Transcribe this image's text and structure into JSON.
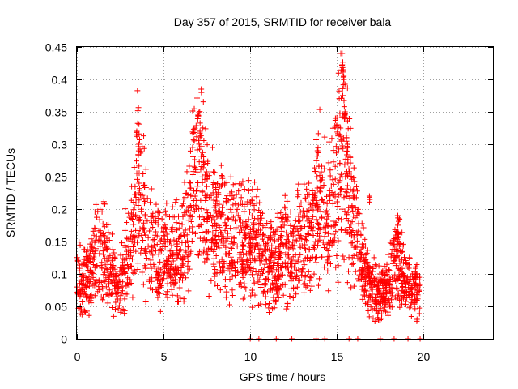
{
  "chart_data": {
    "type": "scatter",
    "title": "Day 357 of 2015, SRMTID for receiver bala",
    "xlabel": "GPS time / hours",
    "ylabel": "SRMTID / TECUs",
    "xlim": [
      0,
      24
    ],
    "ylim": [
      0,
      0.45
    ],
    "xticks": [
      0,
      5,
      10,
      15,
      20
    ],
    "xtick_labels": [
      "0",
      "5",
      "10",
      "15",
      "20"
    ],
    "yticks": [
      0,
      0.05,
      0.1,
      0.15,
      0.2,
      0.25,
      0.3,
      0.35,
      0.4,
      0.45
    ],
    "ytick_labels": [
      "0",
      "0.05",
      "0.1",
      "0.15",
      "0.2",
      "0.25",
      "0.3",
      "0.35",
      "0.4",
      "0.45"
    ],
    "grid": true,
    "marker": "plus",
    "color": "#ff0000",
    "series": [
      {
        "name": "SRMTID",
        "trend": {
          "x": [
            0,
            0.5,
            1,
            1.5,
            2,
            2.4,
            2.8,
            3.3,
            3.5,
            3.8,
            4.2,
            5,
            5.5,
            6,
            6.5,
            7,
            7.5,
            8,
            9,
            10,
            10.5,
            11,
            11.5,
            12,
            12.5,
            13,
            13.5,
            14,
            14.5,
            15,
            15.3,
            15.6,
            16,
            16.5,
            17,
            17.5,
            18,
            18.5,
            19,
            19.5,
            19.8
          ],
          "y": [
            0.09,
            0.085,
            0.12,
            0.13,
            0.1,
            0.07,
            0.12,
            0.16,
            0.25,
            0.21,
            0.15,
            0.13,
            0.12,
            0.14,
            0.19,
            0.26,
            0.19,
            0.17,
            0.15,
            0.15,
            0.14,
            0.12,
            0.12,
            0.14,
            0.13,
            0.15,
            0.17,
            0.21,
            0.18,
            0.23,
            0.3,
            0.24,
            0.17,
            0.11,
            0.08,
            0.07,
            0.08,
            0.13,
            0.08,
            0.075,
            0.07
          ]
        },
        "spikes": [
          {
            "x": 3.45,
            "y": 0.32
          },
          {
            "x": 3.55,
            "y": 0.3
          },
          {
            "x": 7.0,
            "y": 0.345
          },
          {
            "x": 7.1,
            "y": 0.32
          },
          {
            "x": 13.9,
            "y": 0.29
          },
          {
            "x": 14.9,
            "y": 0.34
          },
          {
            "x": 15.05,
            "y": 0.33
          },
          {
            "x": 15.35,
            "y": 0.415
          },
          {
            "x": 15.4,
            "y": 0.405
          },
          {
            "x": 15.45,
            "y": 0.35
          },
          {
            "x": 15.6,
            "y": 0.3
          },
          {
            "x": 16.9,
            "y": 0.22
          },
          {
            "x": 18.5,
            "y": 0.19
          }
        ],
        "zeros_x": [
          10.0,
          10.5,
          11.5,
          12.4,
          13.8,
          14.3,
          15.7,
          16.2,
          17.5,
          18.3,
          19.1,
          19.8
        ]
      }
    ]
  }
}
